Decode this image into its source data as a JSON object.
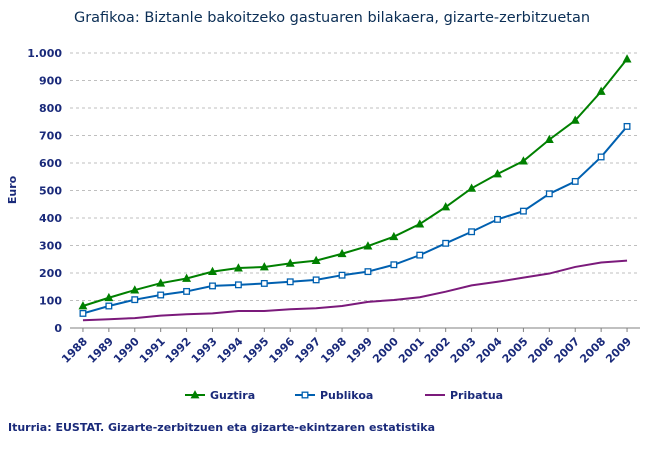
{
  "chart_data": {
    "type": "line",
    "title": "Grafikoa:  Biztanle bakoitzeko gastuaren bilakaera, gizarte-zerbitzuetan",
    "ylabel": "Euro",
    "xlabel": "",
    "ylim": [
      0,
      1000
    ],
    "yticks": [
      0,
      100,
      200,
      300,
      400,
      500,
      600,
      700,
      800,
      900,
      1000
    ],
    "ytick_labels": [
      "0",
      "100",
      "200",
      "300",
      "400",
      "500",
      "600",
      "700",
      "800",
      "900",
      "1.000"
    ],
    "categories": [
      "1988",
      "1989",
      "1990",
      "1991",
      "1992",
      "1993",
      "1994",
      "1995",
      "1996",
      "1997",
      "1998",
      "1999",
      "2000",
      "2001",
      "2002",
      "2003",
      "2004",
      "2005",
      "2006",
      "2007",
      "2008",
      "2009"
    ],
    "grid": true,
    "legend_position": "bottom",
    "series": [
      {
        "name": "Guztira",
        "color": "#008000",
        "marker": "triangle",
        "values": [
          80,
          110,
          138,
          163,
          180,
          205,
          218,
          222,
          235,
          245,
          270,
          298,
          332,
          378,
          440,
          508,
          560,
          607,
          685,
          755,
          860,
          978
        ]
      },
      {
        "name": "Publikoa",
        "color": "#0060b0",
        "marker": "square",
        "values": [
          53,
          80,
          103,
          120,
          133,
          153,
          157,
          162,
          168,
          175,
          192,
          205,
          230,
          265,
          308,
          350,
          395,
          425,
          488,
          533,
          622,
          733
        ]
      },
      {
        "name": "Pribatua",
        "color": "#7b1a7b",
        "marker": "none",
        "values": [
          28,
          32,
          36,
          45,
          50,
          53,
          62,
          62,
          68,
          72,
          80,
          95,
          102,
          112,
          132,
          155,
          168,
          183,
          198,
          222,
          238,
          245
        ]
      }
    ]
  },
  "source_note": "Iturria: EUSTAT. Gizarte-zerbitzuen eta gizarte-ekintzaren estatistika"
}
